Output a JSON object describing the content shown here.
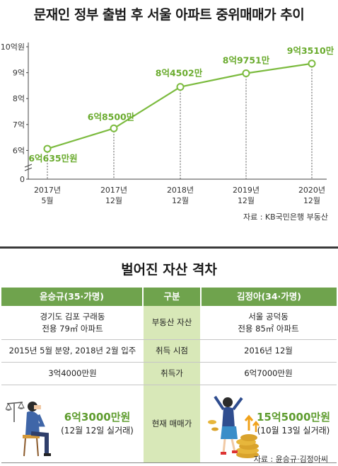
{
  "chart_title": "문재인 정부 출범 후 서울 아파트 중위매매가 추이",
  "chart_data": {
    "type": "line",
    "title": "문재인 정부 출범 후 서울 아파트 중위매매가 추이",
    "categories": [
      "2017년\n5월",
      "2017년\n12월",
      "2018년\n12월",
      "2019년\n12월",
      "2020년\n12월"
    ],
    "values": [
      6.0635,
      6.85,
      8.4502,
      8.9751,
      9.351
    ],
    "data_labels": [
      "6억635만원",
      "6억8500만",
      "8억4502만",
      "8억9751만",
      "9억3510만"
    ],
    "yticks": [
      "0",
      "6억",
      "7억",
      "8억",
      "9억",
      "10억원"
    ],
    "ylim": [
      5,
      10
    ],
    "y_axis_break": true,
    "grid": false,
    "colors": {
      "line": "#7cbb3f",
      "label": "#6aab2e"
    }
  },
  "chart_source": "자료 : KB국민은행 부동산",
  "compare": {
    "title": "벌어진 자산 격차",
    "header": {
      "left": "윤승규(35·가명)",
      "mid": "구분",
      "right": "김정아(34·가명)"
    },
    "rows": [
      {
        "left": [
          "경기도 김포 구래동",
          "전용 79㎡ 아파트"
        ],
        "mid": "부동산 자산",
        "right": [
          "서울 공덕동",
          "전용 85㎡ 아파트"
        ]
      },
      {
        "left": [
          "2015년 5월 분양, 2018년 2월 입주"
        ],
        "mid": "취득 시점",
        "right": [
          "2016년 12월"
        ]
      },
      {
        "left": [
          "3억4000만원"
        ],
        "mid": "취득가",
        "right": [
          "6억7000만원"
        ]
      }
    ],
    "last_row": {
      "mid": "현재 매매가",
      "left_value": "6억3000만원",
      "left_note": "(12월 12일 실거래)",
      "right_value": "15억5000만원",
      "right_note": "(10월 13일 실거래)"
    },
    "source": "자료 : 윤승규·김정아씨"
  }
}
